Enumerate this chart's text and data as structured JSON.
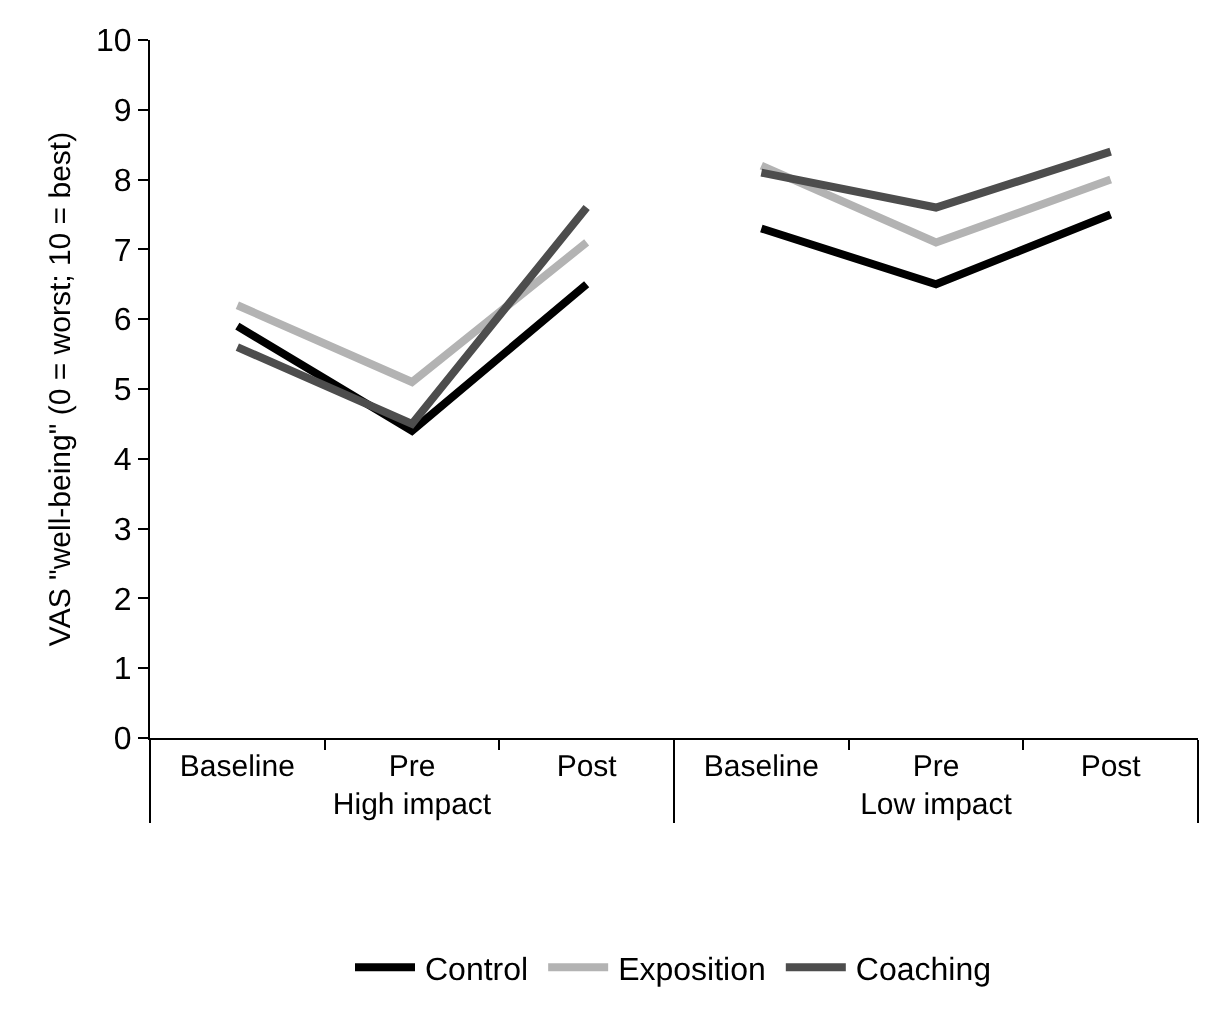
{
  "chart_data": {
    "type": "line",
    "ylabel": "VAS \"well-being\" (0 = worst; 10 = best)",
    "categories": [
      "Baseline",
      "Pre",
      "Post",
      "Baseline",
      "Pre",
      "Post"
    ],
    "annotations": [
      "High impact",
      "Low impact"
    ],
    "series": [
      {
        "name": "Control",
        "color": "#000000",
        "values": [
          5.9,
          4.4,
          6.5,
          7.3,
          6.5,
          7.5
        ]
      },
      {
        "name": "Exposition",
        "color": "#b3b3b3",
        "values": [
          6.2,
          5.1,
          7.1,
          8.2,
          7.1,
          8.0
        ]
      },
      {
        "name": "Coaching",
        "color": "#4d4d4d",
        "values": [
          5.6,
          4.5,
          7.6,
          8.1,
          7.6,
          8.4
        ]
      }
    ],
    "ylim": [
      0,
      10
    ],
    "yticks": [
      0,
      1,
      2,
      3,
      4,
      5,
      6,
      7,
      8,
      9,
      10
    ],
    "grid": false,
    "legend": "bottom",
    "marker": "none",
    "line_style": "solid"
  }
}
